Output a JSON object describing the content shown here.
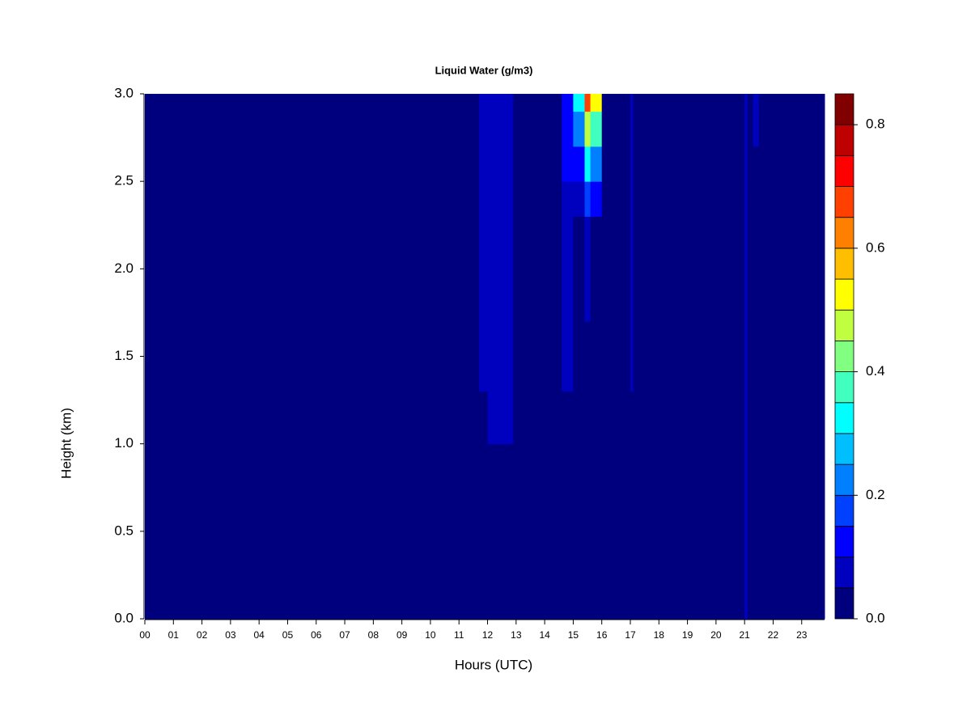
{
  "chart_data": {
    "type": "heatmap",
    "title": "Liquid Water (g/m3)",
    "x_label": "Hours (UTC)",
    "y_label": "Height (km)",
    "xlim": [
      0,
      23.8
    ],
    "ylim": [
      0,
      3.0
    ],
    "xticks": [
      {
        "value": 0,
        "label": "00"
      },
      {
        "value": 1,
        "label": "01"
      },
      {
        "value": 2,
        "label": "02"
      },
      {
        "value": 3,
        "label": "03"
      },
      {
        "value": 4,
        "label": "04"
      },
      {
        "value": 5,
        "label": "05"
      },
      {
        "value": 6,
        "label": "06"
      },
      {
        "value": 7,
        "label": "07"
      },
      {
        "value": 8,
        "label": "08"
      },
      {
        "value": 9,
        "label": "09"
      },
      {
        "value": 10,
        "label": "10"
      },
      {
        "value": 11,
        "label": "11"
      },
      {
        "value": 12,
        "label": "12"
      },
      {
        "value": 13,
        "label": "13"
      },
      {
        "value": 14,
        "label": "14"
      },
      {
        "value": 15,
        "label": "15"
      },
      {
        "value": 16,
        "label": "16"
      },
      {
        "value": 17,
        "label": "17"
      },
      {
        "value": 18,
        "label": "18"
      },
      {
        "value": 19,
        "label": "19"
      },
      {
        "value": 20,
        "label": "20"
      },
      {
        "value": 21,
        "label": "21"
      },
      {
        "value": 22,
        "label": "22"
      },
      {
        "value": 23,
        "label": "23"
      }
    ],
    "yticks": [
      {
        "value": 0,
        "label": "0.0"
      },
      {
        "value": 0.5,
        "label": "0.5"
      },
      {
        "value": 1,
        "label": "1.0"
      },
      {
        "value": 1.5,
        "label": "1.5"
      },
      {
        "value": 2,
        "label": "2.0"
      },
      {
        "value": 2.5,
        "label": "2.5"
      },
      {
        "value": 3,
        "label": "3.0"
      }
    ],
    "x_edges": [
      0,
      11.7,
      12.0,
      12.6,
      12.9,
      14.6,
      15.0,
      15.4,
      15.6,
      16.0,
      17.0,
      17.1,
      21.0,
      21.1,
      21.3,
      21.5,
      23.8
    ],
    "y_edges": [
      0,
      1.0,
      1.3,
      1.7,
      2.3,
      2.5,
      2.7,
      2.9,
      3.0
    ],
    "z": [
      [
        0.02,
        0.02,
        0.02,
        0.02,
        0.02,
        0.02,
        0.02,
        0.02,
        0.02,
        0.02,
        0.02,
        0.02,
        0.06,
        0.02,
        0.02,
        0.02
      ],
      [
        0.02,
        0.02,
        0.06,
        0.06,
        0.02,
        0.02,
        0.02,
        0.02,
        0.02,
        0.02,
        0.02,
        0.02,
        0.06,
        0.02,
        0.02,
        0.02
      ],
      [
        0.02,
        0.06,
        0.06,
        0.08,
        0.02,
        0.07,
        0.02,
        0.02,
        0.02,
        0.02,
        0.06,
        0.02,
        0.06,
        0.02,
        0.02,
        0.02
      ],
      [
        0.02,
        0.06,
        0.06,
        0.06,
        0.02,
        0.06,
        0.02,
        0.08,
        0.02,
        0.02,
        0.06,
        0.02,
        0.06,
        0.02,
        0.02,
        0.02
      ],
      [
        0.02,
        0.06,
        0.06,
        0.07,
        0.02,
        0.08,
        0.08,
        0.15,
        0.1,
        0.02,
        0.06,
        0.02,
        0.06,
        0.02,
        0.02,
        0.02
      ],
      [
        0.02,
        0.06,
        0.06,
        0.07,
        0.02,
        0.1,
        0.12,
        0.3,
        0.2,
        0.02,
        0.06,
        0.02,
        0.06,
        0.02,
        0.02,
        0.02
      ],
      [
        0.02,
        0.06,
        0.06,
        0.08,
        0.02,
        0.12,
        0.22,
        0.45,
        0.35,
        0.02,
        0.06,
        0.02,
        0.06,
        0.02,
        0.06,
        0.02
      ],
      [
        0.02,
        0.06,
        0.06,
        0.08,
        0.02,
        0.12,
        0.3,
        0.68,
        0.5,
        0.02,
        0.06,
        0.02,
        0.06,
        0.02,
        0.06,
        0.02
      ]
    ],
    "levels": [
      0,
      0.05,
      0.1,
      0.15,
      0.2,
      0.25,
      0.3,
      0.35,
      0.4,
      0.45,
      0.5,
      0.55,
      0.6,
      0.65,
      0.7,
      0.75,
      0.8,
      0.85
    ],
    "colors": [
      "#00007f",
      "#0000bf",
      "#0000ff",
      "#0040ff",
      "#0080ff",
      "#00bfff",
      "#00ffff",
      "#40ffbf",
      "#80ff80",
      "#bfff40",
      "#ffff00",
      "#ffbf00",
      "#ff8000",
      "#ff4000",
      "#ff0000",
      "#bf0000",
      "#800000"
    ],
    "colorbar_ticks": [
      {
        "value": 0,
        "label": "0.0"
      },
      {
        "value": 0.2,
        "label": "0.2"
      },
      {
        "value": 0.4,
        "label": "0.4"
      },
      {
        "value": 0.6,
        "label": "0.6"
      },
      {
        "value": 0.8,
        "label": "0.8"
      }
    ]
  }
}
